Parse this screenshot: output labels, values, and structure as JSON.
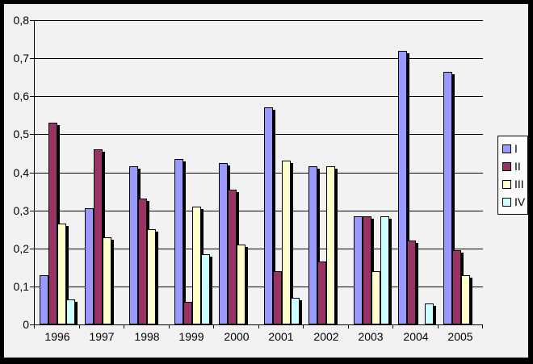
{
  "chart_data": {
    "type": "bar",
    "title": "",
    "xlabel": "",
    "ylabel": "",
    "categories": [
      "1996",
      "1997",
      "1998",
      "1999",
      "2000",
      "2001",
      "2002",
      "2003",
      "2004",
      "2005"
    ],
    "series": [
      {
        "name": "I",
        "color": "#9999FF",
        "values": [
          0.13,
          0.305,
          0.415,
          0.435,
          0.425,
          0.57,
          0.415,
          0.285,
          0.72,
          0.665
        ]
      },
      {
        "name": "II",
        "color": "#993366",
        "values": [
          0.53,
          0.46,
          0.33,
          0.06,
          0.355,
          0.14,
          0.165,
          0.285,
          0.22,
          0.195
        ]
      },
      {
        "name": "III",
        "color": "#FFFFCC",
        "values": [
          0.265,
          0.23,
          0.25,
          0.31,
          0.21,
          0.43,
          0.415,
          0.14,
          0,
          0.13
        ]
      },
      {
        "name": "IV",
        "color": "#CCFFFF",
        "values": [
          0.065,
          0,
          0,
          0.185,
          0,
          0.07,
          0,
          0.285,
          0.055,
          0
        ]
      }
    ],
    "ylim": [
      0,
      0.8
    ],
    "ytick_step": 0.1,
    "ytick_labels": [
      "0",
      "0,1",
      "0,2",
      "0,3",
      "0,4",
      "0,5",
      "0,6",
      "0,7",
      "0,8"
    ],
    "decimal_separator": ",",
    "grid": "horizontal",
    "legend_position": "right",
    "legend_entries": [
      "I",
      "II",
      "III",
      "IV"
    ]
  },
  "colors": {
    "frame": "#000000",
    "chart_background": "#F2F2F2",
    "plot_background": "#F2F2F2",
    "gridline": "#000000",
    "axis": "#000000",
    "bar_border": "#000000",
    "bar_shadow": "#000000",
    "legend_background": "#FCFCFC",
    "text": "#000000"
  }
}
